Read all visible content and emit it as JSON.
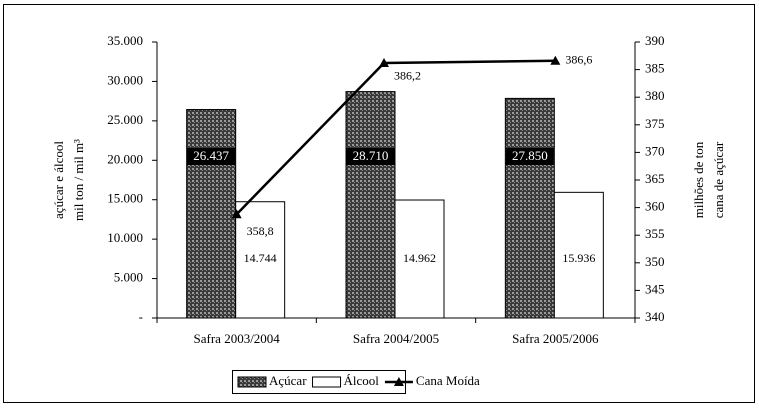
{
  "chart_data": {
    "type": "bar_line",
    "ylabel": [
      "açúcar e álcool",
      "mil ton / mil m³"
    ],
    "y2label": [
      "milhões de ton",
      "cana de açúcar"
    ],
    "categories": [
      "Safra 2003/2004",
      "Safra 2004/2005",
      "Safra 2005/2006"
    ],
    "series": [
      {
        "name": "Açúcar",
        "type": "bar",
        "color": "#4a4a4a",
        "values": [
          26437,
          28710,
          27850
        ],
        "value_labels": [
          "26.437",
          "28.710",
          "27.850"
        ]
      },
      {
        "name": "Álcool",
        "type": "bar",
        "color": "#ffffff",
        "values": [
          14744,
          14962,
          15936
        ],
        "value_labels": [
          "14.744",
          "14.962",
          "15.936"
        ]
      },
      {
        "name": "Cana Moída",
        "type": "line",
        "axis": "y2",
        "color": "#000000",
        "values": [
          358.8,
          386.2,
          386.6
        ],
        "value_labels": [
          "358,8",
          "386,2",
          "386,6"
        ]
      }
    ],
    "ylim": [
      0,
      35000
    ],
    "yticks": [
      {
        "value": 0,
        "label": "-"
      },
      {
        "value": 5000,
        "label": "5.000"
      },
      {
        "value": 10000,
        "label": "10.000"
      },
      {
        "value": 15000,
        "label": "15.000"
      },
      {
        "value": 20000,
        "label": "20.000"
      },
      {
        "value": 25000,
        "label": "25.000"
      },
      {
        "value": 30000,
        "label": "30.000"
      },
      {
        "value": 35000,
        "label": "35.000"
      }
    ],
    "y2lim": [
      340,
      390
    ],
    "y2ticks": [
      340,
      345,
      350,
      355,
      360,
      365,
      370,
      375,
      380,
      385,
      390
    ],
    "legend": "bottom"
  }
}
